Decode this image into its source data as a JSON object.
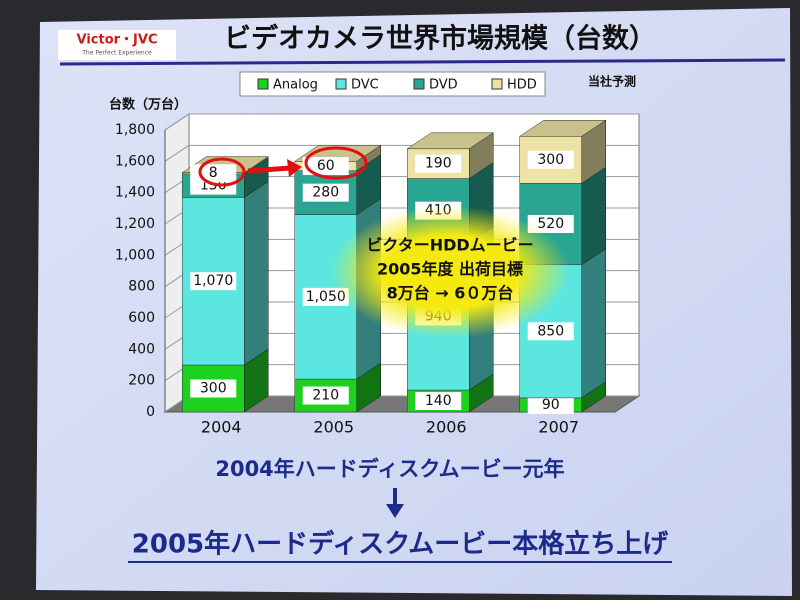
{
  "logo": {
    "brand": "Victor・JVC",
    "tagline": "The Perfect Experience"
  },
  "chart_data": {
    "type": "stacked-bar-3d",
    "title": "ビデオカメラ世界市場規模（台数）",
    "y_label": "台数（万台）",
    "note": "当社予測",
    "categories": [
      "2004",
      "2005",
      "2006",
      "2007"
    ],
    "series": [
      {
        "name": "Analog",
        "color": "#1fd11f",
        "values": [
          300,
          210,
          140,
          90
        ]
      },
      {
        "name": "DVC",
        "color": "#5ce6e0",
        "values": [
          1070,
          1050,
          940,
          850
        ],
        "value_labels": [
          "1,070",
          "1,050",
          "940",
          "850"
        ]
      },
      {
        "name": "DVD",
        "color": "#2aa592",
        "values": [
          150,
          280,
          410,
          520
        ]
      },
      {
        "name": "HDD",
        "color": "#ece3a4",
        "values": [
          8,
          60,
          190,
          300
        ]
      }
    ],
    "ylim": [
      0,
      1800
    ],
    "yticks": [
      0,
      200,
      400,
      600,
      800,
      {
        "value": 1000,
        "label": "1,000"
      },
      {
        "value": 1200,
        "label": "1,200"
      },
      {
        "value": 1400,
        "label": "1,400"
      },
      {
        "value": 1600,
        "label": "1,600"
      },
      {
        "value": 1800,
        "label": "1,800"
      }
    ],
    "grid": true,
    "annotation": [
      "ビクターHDDムービー",
      "2005年度 出荷目標",
      "8万台 → 6０万台"
    ]
  },
  "slide": {
    "line1": "2004年ハードディスクムービー元年",
    "line2": "2005年ハードディスクムービー本格立ち上げ"
  }
}
